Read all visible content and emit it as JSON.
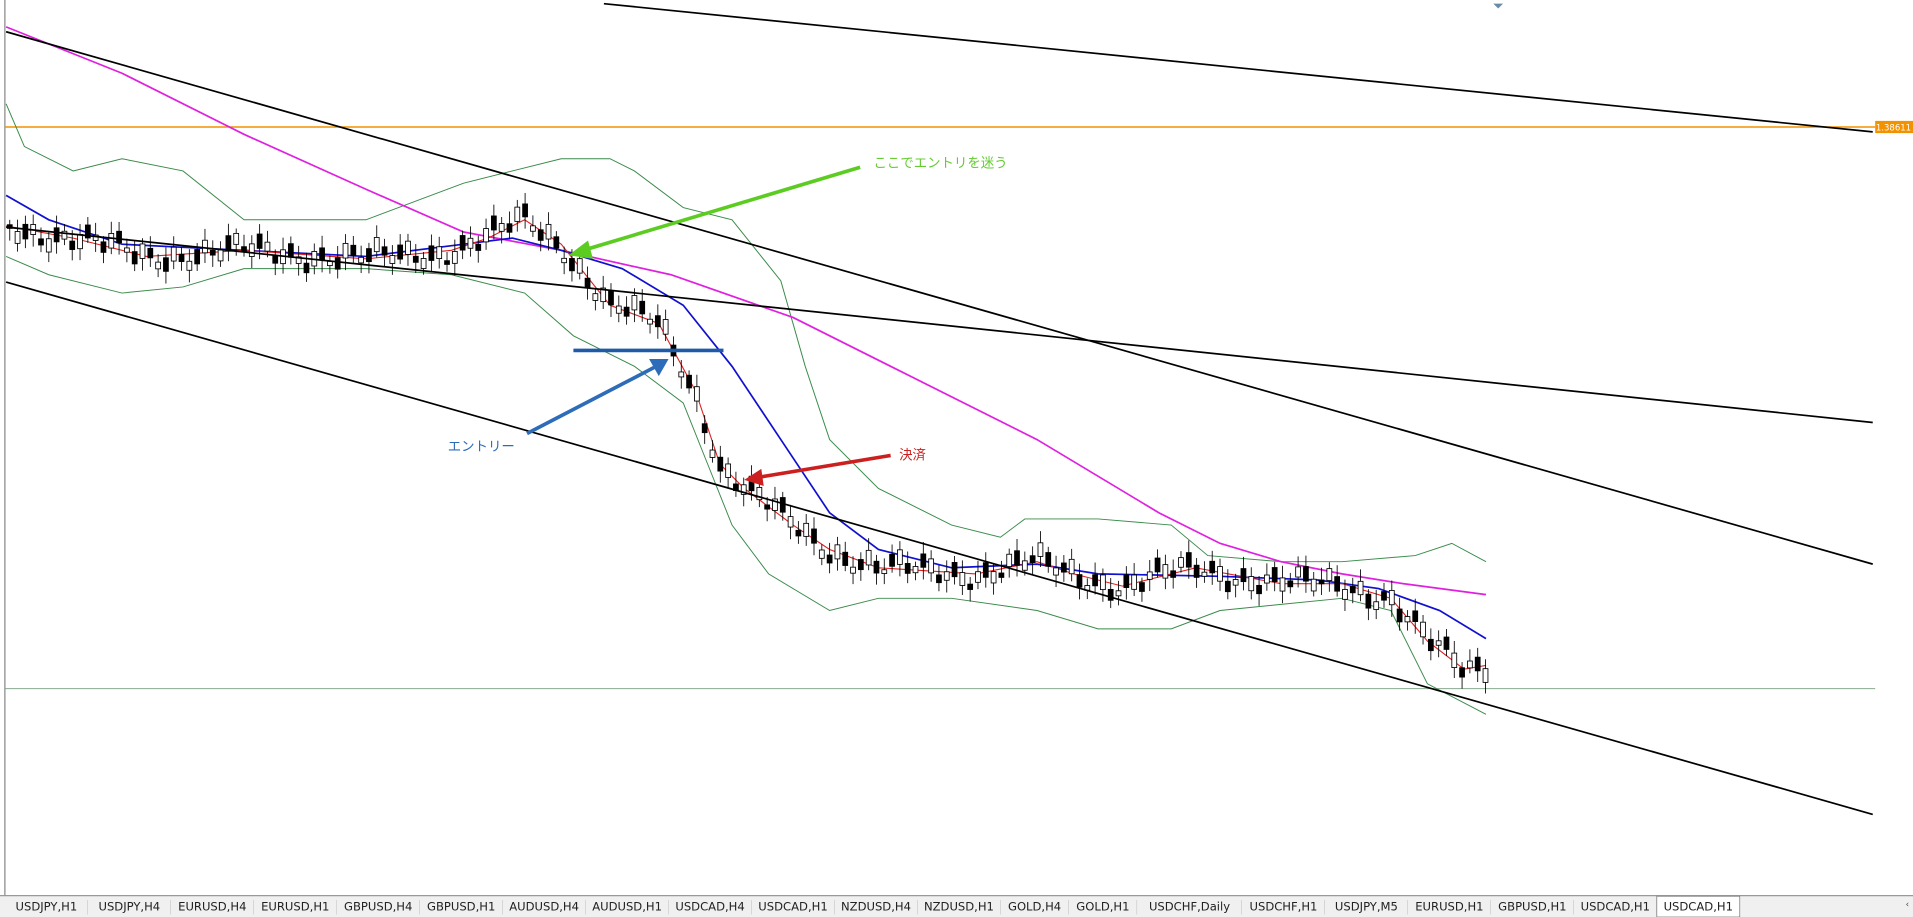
{
  "price_line_label": "1.38611",
  "annotations": {
    "hesitate": "ここでエントリを迷う",
    "entry": "エントリー",
    "exit": "決済"
  },
  "tabs": [
    "USDJPY,H1",
    "USDJPY,H4",
    "EURUSD,H4",
    "EURUSD,H1",
    "GBPUSD,H4",
    "GBPUSD,H1",
    "AUDUSD,H4",
    "AUDUSD,H1",
    "USDCAD,H4",
    "USDCAD,H1",
    "NZDUSD,H4",
    "NZDUSD,H1",
    "GOLD,H4",
    "GOLD,H1",
    "USDCHF,Daily",
    "USDCHF,H1",
    "USDJPY,M5",
    "EURUSD,H1",
    "GBPUSD,H1",
    "USDCAD,H1",
    "USDCAD,H1"
  ],
  "active_tab_index": 20
}
